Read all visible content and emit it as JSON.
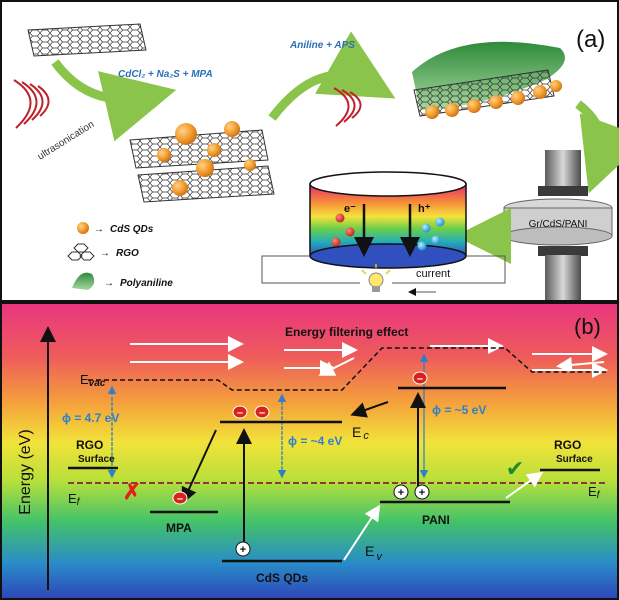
{
  "panel_a": {
    "label": "(a)",
    "step1_reagents": "CdCl₂ + Na₂S + MPA",
    "step2_reagents": "Aniline + APS",
    "ultrasonication": "ultrasonication",
    "legend": [
      {
        "label": "CdS QDs",
        "icon": "orange-sphere-icon"
      },
      {
        "label": "RGO",
        "icon": "hexagon-icon"
      },
      {
        "label": "Polyaniline",
        "icon": "green-leaf-icon"
      }
    ],
    "device_label": "Gr/CdS/PANI",
    "electron": "e⁻",
    "hole": "h⁺",
    "current": "current"
  },
  "panel_b": {
    "label": "(b)",
    "y_axis": "Energy (eV)",
    "title": "Energy filtering effect",
    "evac_main": "E",
    "evac_sub": "vac",
    "ec_main": "E",
    "ec_sub": "c",
    "ev_main": "E",
    "ev_sub": "v",
    "ef_main": "E",
    "ef_sub": "f",
    "phi_rgo": "ϕ = 4.7 eV",
    "phi_cds": "ϕ = ~4 eV",
    "phi_pani": "ϕ = ~5 eV",
    "rgo_left": "RGO",
    "surface_left": "Surface",
    "rgo_right": "RGO",
    "surface_right": "Surface",
    "mpa": "MPA",
    "pani": "PANI",
    "cds": "CdS QDs",
    "minus": "–",
    "plus": "+",
    "cross": "✗",
    "check": "✔"
  },
  "colors": {
    "arrow_green": "#8ac44a",
    "phi_blue": "#2f7fc8",
    "ef_line": "#8a3a3a",
    "cds_orange": "#f0a030"
  }
}
